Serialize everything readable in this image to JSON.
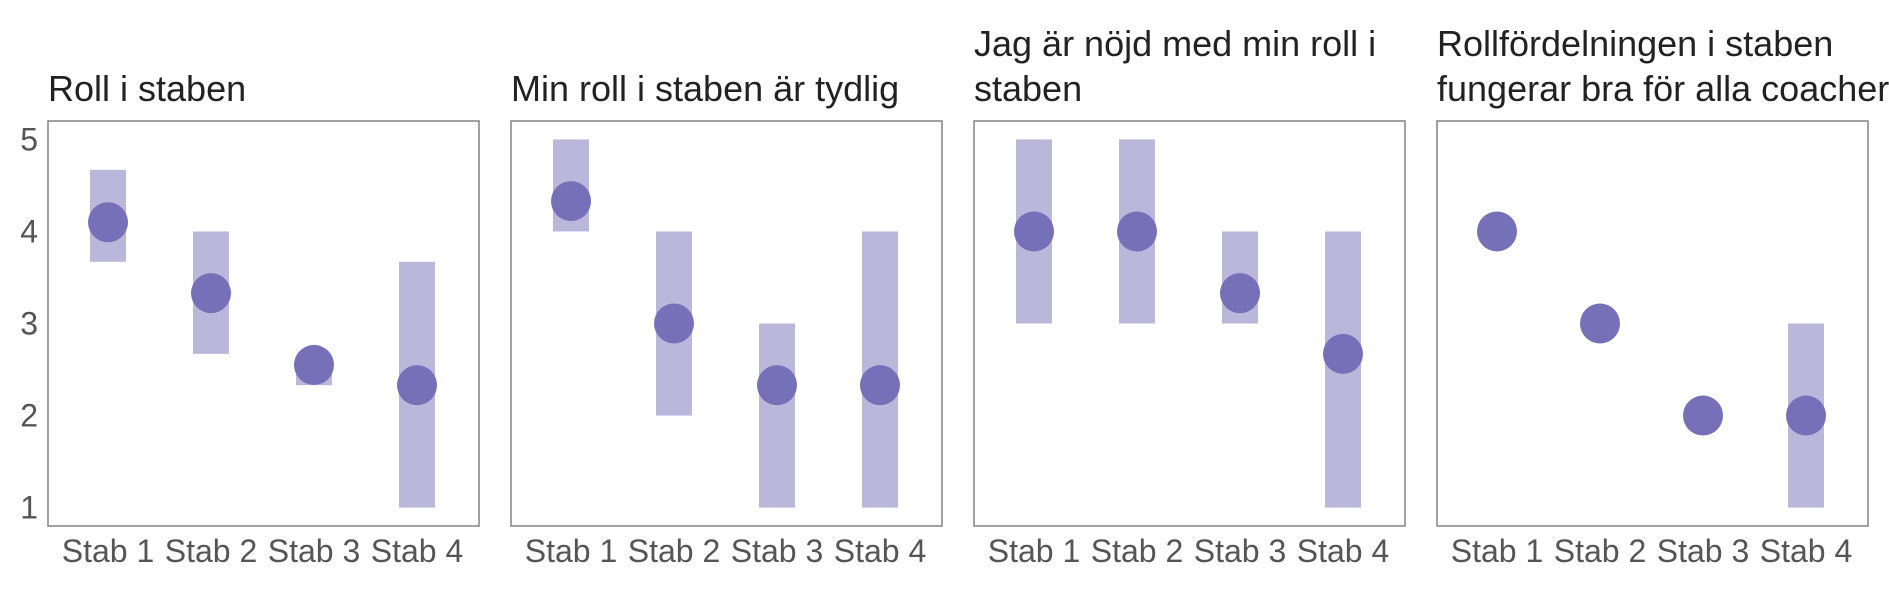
{
  "chart_data": [
    {
      "type": "range-dot",
      "title_lines": [
        "Roll i staben"
      ],
      "categories": [
        "Stab 1",
        "Stab 2",
        "Stab 3",
        "Stab 4"
      ],
      "means": [
        4.1,
        3.33,
        2.55,
        2.33
      ],
      "ranges": [
        [
          3.67,
          4.67
        ],
        [
          2.67,
          4.0
        ],
        [
          2.33,
          2.55
        ],
        [
          1.0,
          3.67
        ]
      ],
      "ylim": [
        0.8,
        5.2
      ],
      "yticks": [
        "1",
        "2",
        "3",
        "4",
        "5"
      ],
      "show_yticks": true
    },
    {
      "type": "range-dot",
      "title_lines": [
        "Min roll i staben är tydlig"
      ],
      "categories": [
        "Stab 1",
        "Stab 2",
        "Stab 3",
        "Stab 4"
      ],
      "means": [
        4.33,
        3.0,
        2.33,
        2.33
      ],
      "ranges": [
        [
          4.0,
          5.0
        ],
        [
          2.0,
          4.0
        ],
        [
          1.0,
          3.0
        ],
        [
          1.0,
          4.0
        ]
      ],
      "ylim": [
        0.8,
        5.2
      ],
      "show_yticks": false
    },
    {
      "type": "range-dot",
      "title_lines": [
        "Jag är nöjd med min roll i",
        "staben"
      ],
      "categories": [
        "Stab 1",
        "Stab 2",
        "Stab 3",
        "Stab 4"
      ],
      "means": [
        4.0,
        4.0,
        3.33,
        2.67
      ],
      "ranges": [
        [
          3.0,
          5.0
        ],
        [
          3.0,
          5.0
        ],
        [
          3.0,
          4.0
        ],
        [
          1.0,
          4.0
        ]
      ],
      "ylim": [
        0.8,
        5.2
      ],
      "show_yticks": false
    },
    {
      "type": "range-dot",
      "title_lines": [
        "Rollfördelningen i staben",
        "fungerar bra för alla coacher"
      ],
      "categories": [
        "Stab 1",
        "Stab 2",
        "Stab 3",
        "Stab 4"
      ],
      "means": [
        4.0,
        3.0,
        2.0,
        2.0
      ],
      "ranges": [
        null,
        null,
        null,
        [
          1.0,
          3.0
        ]
      ],
      "ylim": [
        0.8,
        5.2
      ],
      "show_yticks": false
    }
  ],
  "colors": {
    "dot": "#7570b8",
    "range_bar": "#bbb7db",
    "frame": "#8a8a8a",
    "title": "#222222",
    "tick": "#555555"
  }
}
